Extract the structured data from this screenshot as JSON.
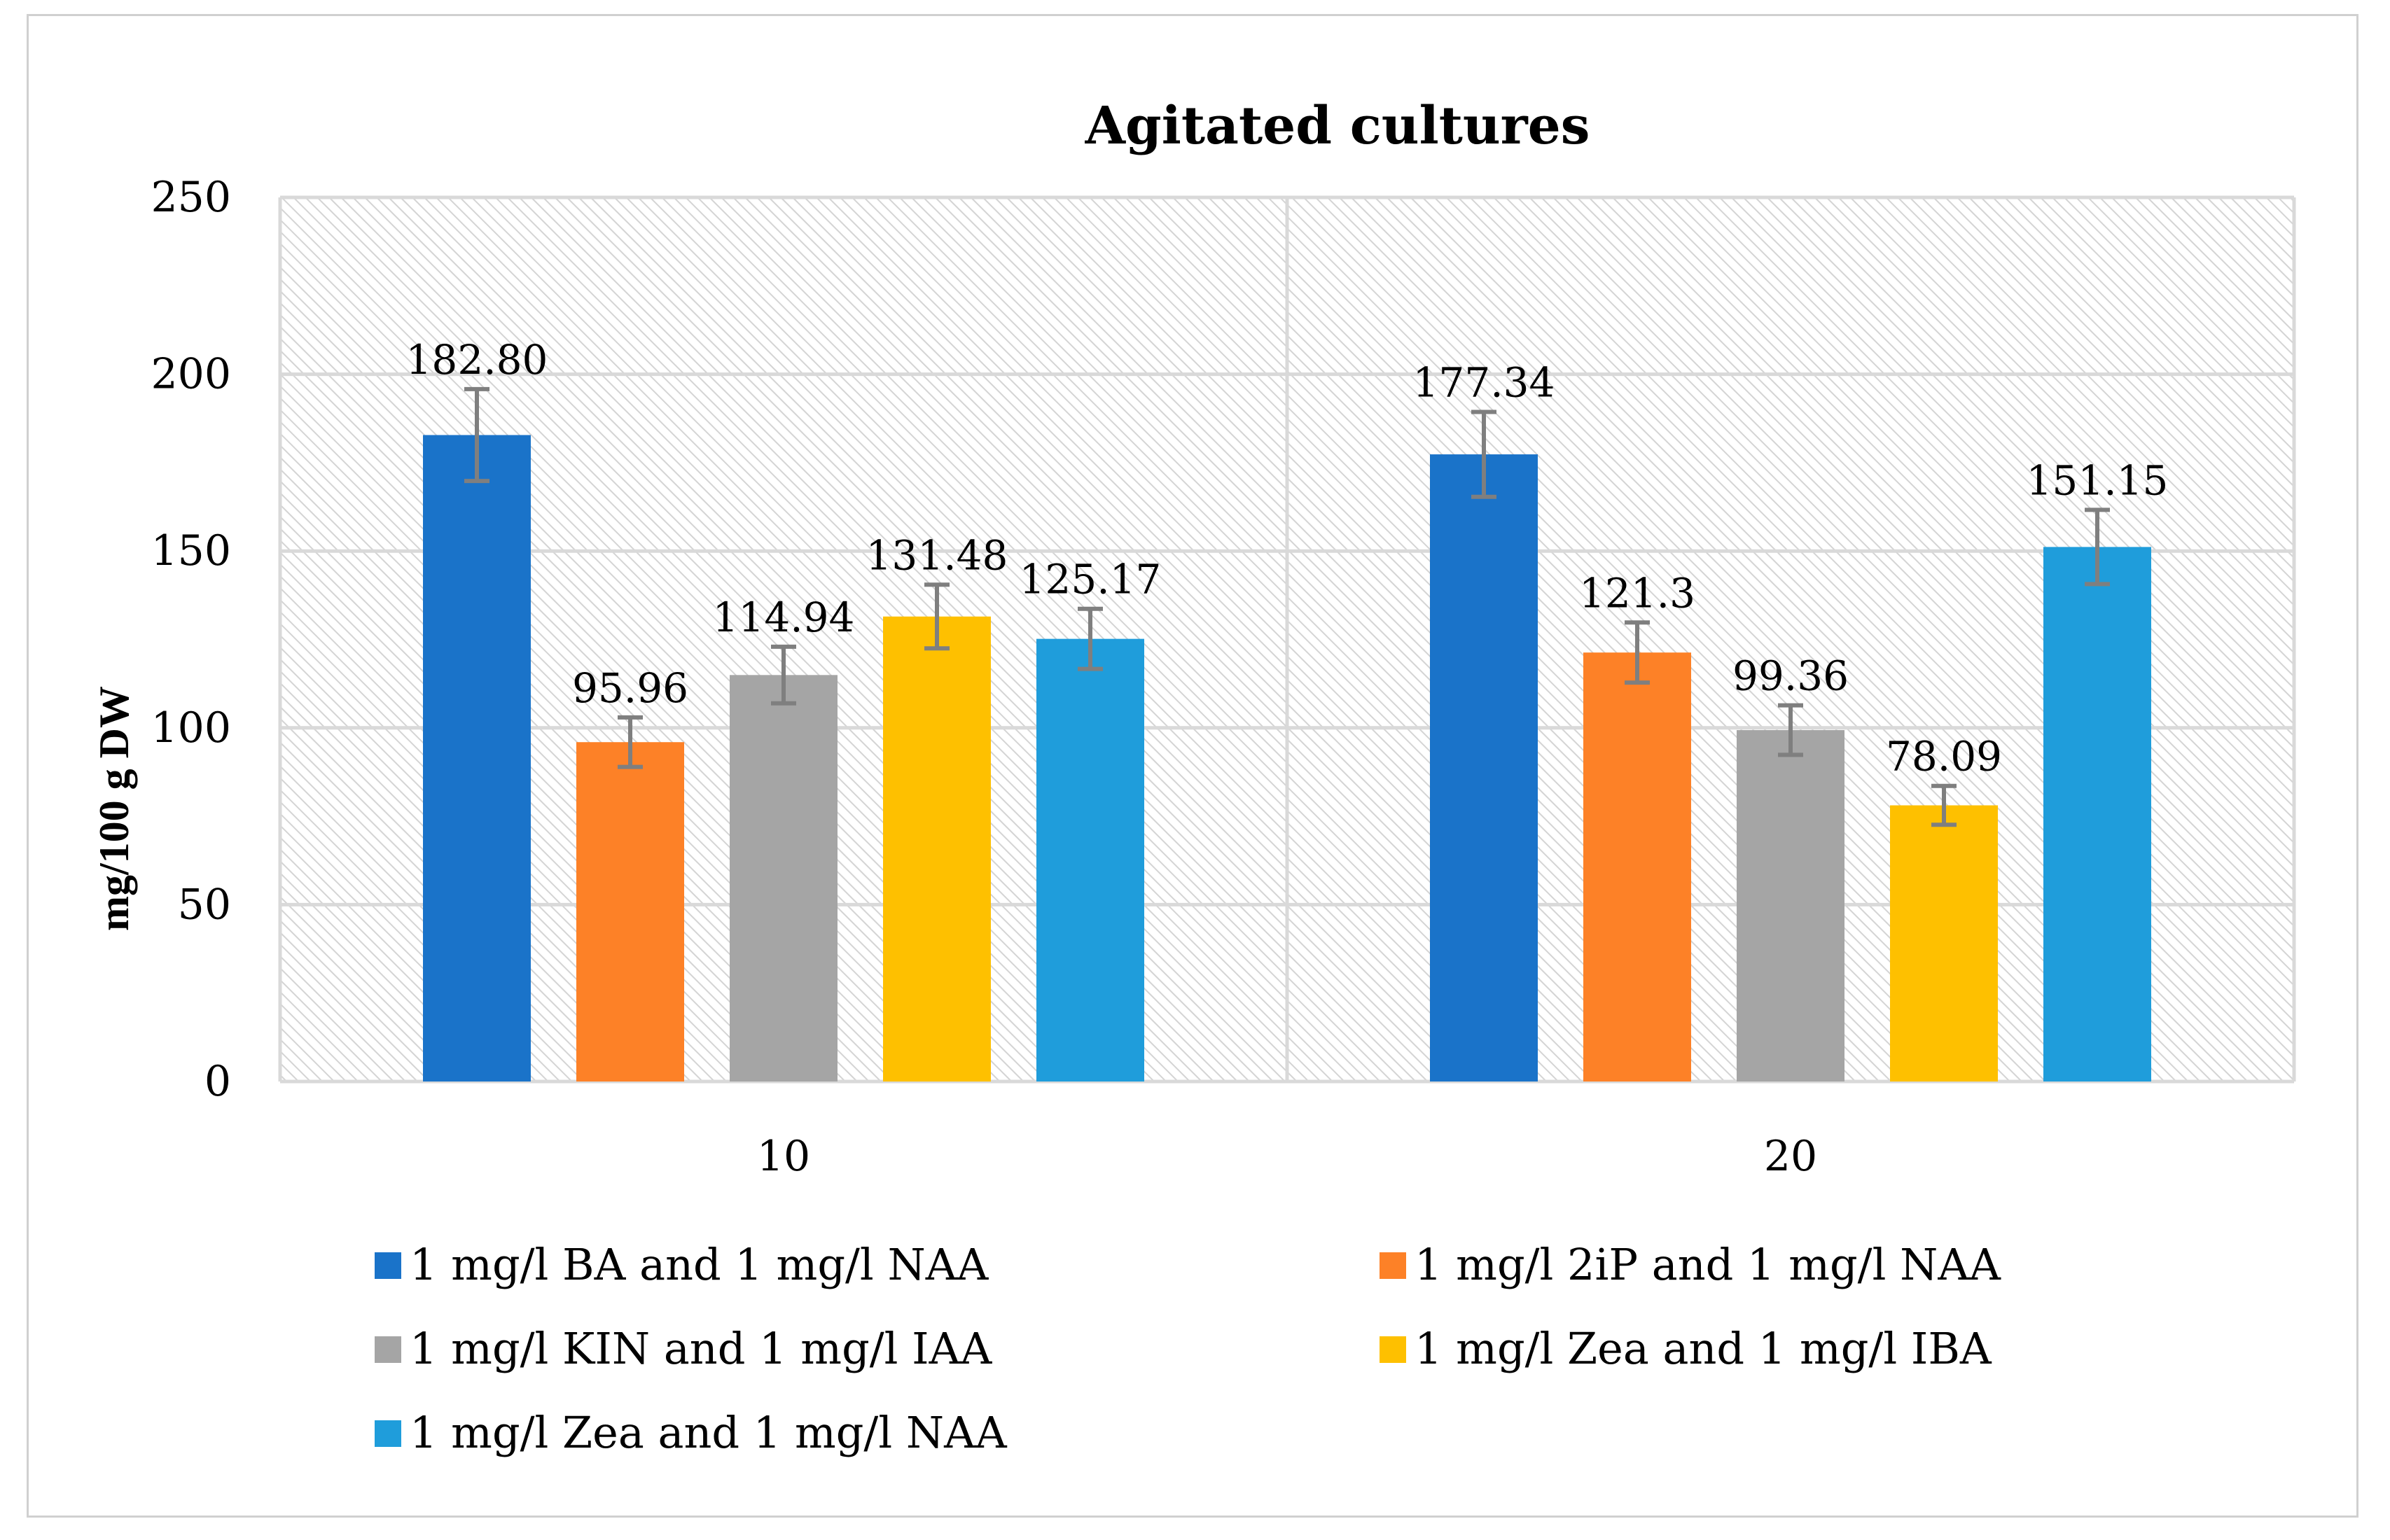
{
  "chart_data": {
    "type": "bar",
    "title": "Agitated cultures",
    "xlabel": "",
    "ylabel": "mg/100 g DW",
    "ylim": [
      0,
      250
    ],
    "yticks": [
      0,
      50,
      100,
      150,
      200,
      250
    ],
    "grid": true,
    "legend_position": "bottom",
    "categories": [
      "10",
      "20"
    ],
    "series": [
      {
        "name": "1 mg/l BA and 1 mg/l NAA",
        "color": "#1a73c9",
        "values": [
          182.8,
          177.34
        ],
        "labels": [
          "182.80",
          "177.34"
        ],
        "errors": [
          13,
          12
        ]
      },
      {
        "name": "1 mg/l 2iP and 1 mg/l NAA",
        "color": "#fd8127",
        "values": [
          95.96,
          121.3
        ],
        "labels": [
          "95.96",
          "121.3"
        ],
        "errors": [
          7,
          8.5
        ]
      },
      {
        "name": "1 mg/l KIN and 1 mg/l IAA",
        "color": "#a5a5a5",
        "values": [
          114.94,
          99.36
        ],
        "labels": [
          "114.94",
          "99.36"
        ],
        "errors": [
          8,
          7
        ]
      },
      {
        "name": "1 mg/l Zea and 1 mg/l IBA",
        "color": "#fec000",
        "values": [
          131.48,
          78.09
        ],
        "labels": [
          "131.48",
          "78.09"
        ],
        "errors": [
          9,
          5.5
        ]
      },
      {
        "name": "1 mg/l Zea and 1 mg/l NAA",
        "color": "#1f9ddb",
        "values": [
          125.17,
          151.15
        ],
        "labels": [
          "125.17",
          "151.15"
        ],
        "errors": [
          8.5,
          10.5
        ]
      }
    ],
    "error_bar_color": "#7f7f7f",
    "grid_color": "#d9d9d9"
  }
}
